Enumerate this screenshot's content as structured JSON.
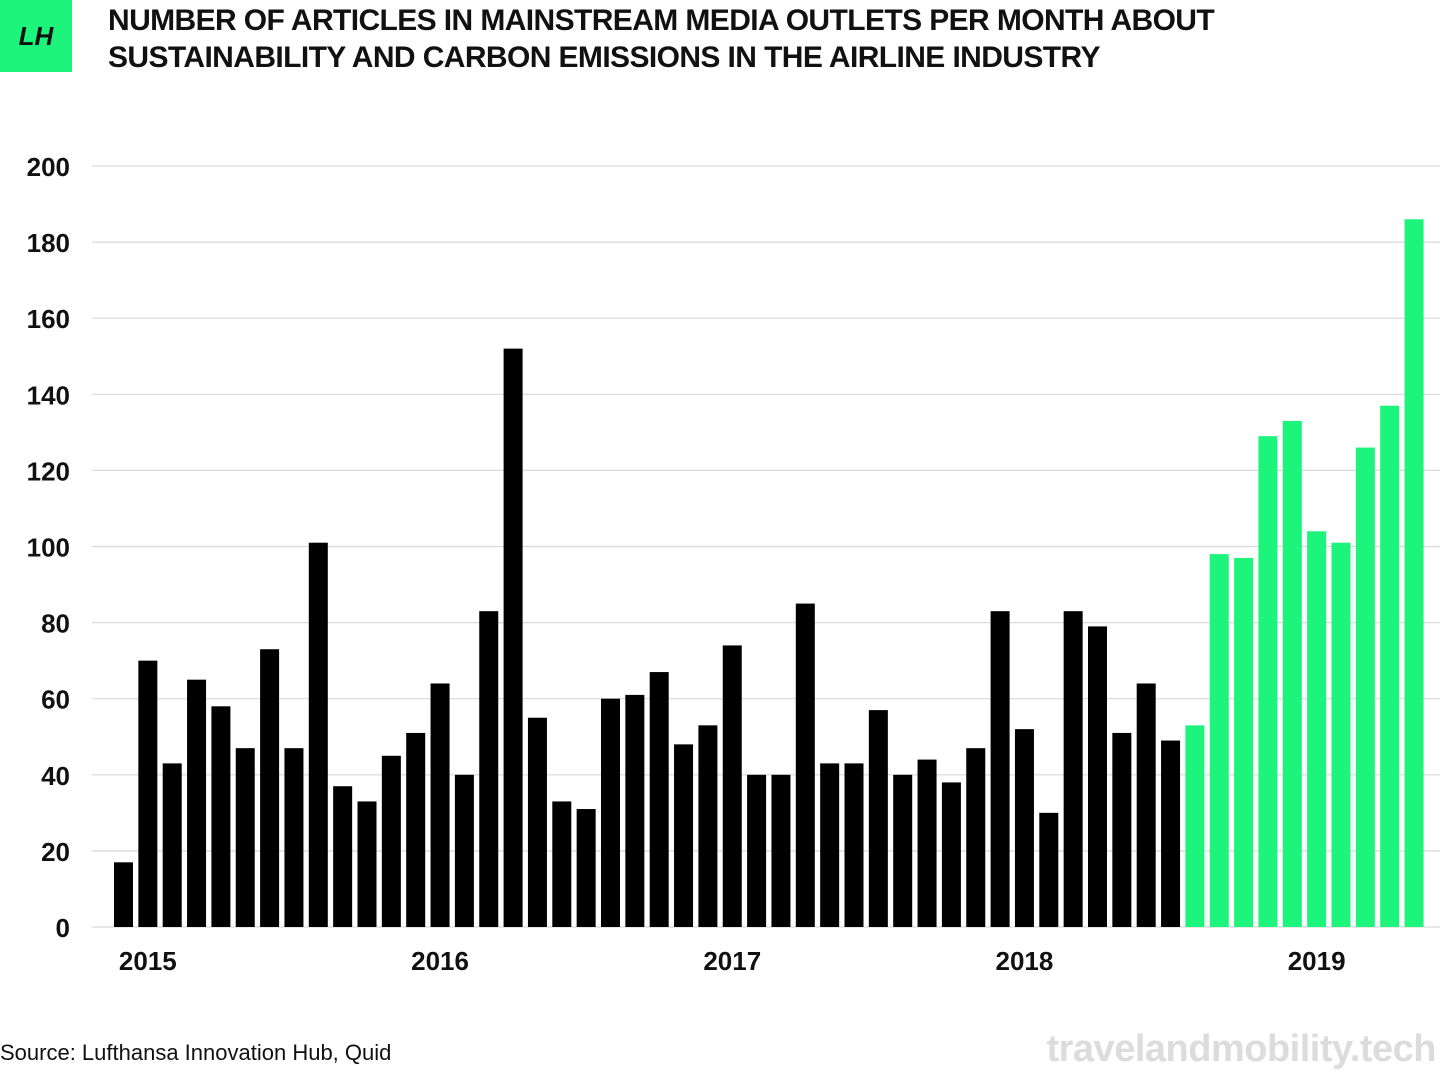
{
  "header": {
    "logo_text": "LH",
    "title": "NUMBER OF ARTICLES IN MAINSTREAM MEDIA OUTLETS PER MONTH ABOUT SUSTAINABILITY AND CARBON EMISSIONS IN THE AIRLINE INDUSTRY"
  },
  "footer": {
    "source": "Source: Lufthansa Innovation Hub, Quid",
    "watermark": "travelandmobility.tech"
  },
  "colors": {
    "bar_default": "#000000",
    "bar_highlight": "#1df47c",
    "accent": "#1df47c",
    "grid": "#d9d9d9"
  },
  "chart_data": {
    "type": "bar",
    "title": "NUMBER OF ARTICLES IN MAINSTREAM MEDIA OUTLETS PER MONTH ABOUT SUSTAINABILITY AND CARBON EMISSIONS IN THE AIRLINE INDUSTRY",
    "xlabel": "",
    "ylabel": "",
    "ylim": [
      0,
      200
    ],
    "yticks": [
      0,
      20,
      40,
      60,
      80,
      100,
      120,
      140,
      160,
      180,
      200
    ],
    "grid": true,
    "year_labels": [
      {
        "label": "2015",
        "index": 1
      },
      {
        "label": "2016",
        "index": 13
      },
      {
        "label": "2017",
        "index": 25
      },
      {
        "label": "2018",
        "index": 37
      },
      {
        "label": "2019",
        "index": 49
      }
    ],
    "highlight_from_index": 44,
    "values": [
      17,
      70,
      43,
      65,
      58,
      47,
      73,
      47,
      101,
      37,
      33,
      45,
      51,
      64,
      40,
      83,
      152,
      55,
      33,
      31,
      60,
      61,
      67,
      48,
      53,
      74,
      40,
      40,
      85,
      43,
      43,
      57,
      40,
      44,
      38,
      47,
      83,
      52,
      30,
      83,
      79,
      51,
      64,
      49,
      53,
      98,
      97,
      129,
      133,
      104,
      101,
      126,
      137,
      186
    ]
  }
}
